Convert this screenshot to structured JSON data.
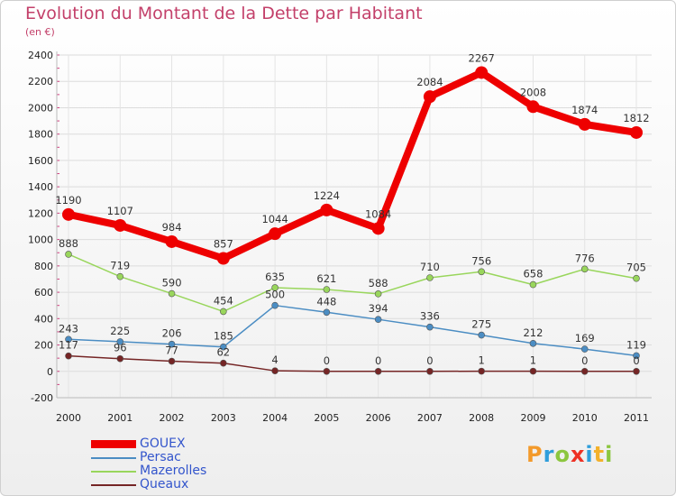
{
  "chart_data": {
    "type": "line",
    "title": "Evolution du Montant de la Dette par Habitant",
    "subtitle": "(en €)",
    "categories": [
      "2000",
      "2001",
      "2002",
      "2003",
      "2004",
      "2005",
      "2006",
      "2007",
      "2008",
      "2009",
      "2010",
      "2011"
    ],
    "ylim": [
      -200,
      2400
    ],
    "yticks": [
      -200,
      0,
      200,
      400,
      600,
      800,
      1000,
      1200,
      1400,
      1600,
      1800,
      2000,
      2200,
      2400
    ],
    "grid": true,
    "legend_position": "bottom-left",
    "series": [
      {
        "name": "GOUEX",
        "color": "#ee0000",
        "values": [
          1190,
          1107,
          984,
          857,
          1044,
          1224,
          1084,
          2084,
          2267,
          2008,
          1874,
          1812
        ]
      },
      {
        "name": "Persac",
        "color": "#4b8dc3",
        "values": [
          243,
          225,
          206,
          185,
          500,
          448,
          394,
          336,
          275,
          212,
          169,
          119
        ]
      },
      {
        "name": "Mazerolles",
        "color": "#99d65c",
        "values": [
          888,
          719,
          590,
          454,
          635,
          621,
          588,
          710,
          756,
          658,
          776,
          705
        ]
      },
      {
        "name": "Queaux",
        "color": "#752525",
        "values": [
          117,
          96,
          77,
          62,
          4,
          0,
          0,
          0,
          1,
          1,
          0,
          0
        ]
      }
    ]
  },
  "logo": {
    "letters": [
      {
        "ch": "P",
        "color": "#f39a2b"
      },
      {
        "ch": "r",
        "color": "#2f9edb"
      },
      {
        "ch": "o",
        "color": "#8cc63f"
      },
      {
        "ch": "x",
        "color": "#ee3124"
      },
      {
        "ch": "i",
        "color": "#2f9edb"
      },
      {
        "ch": "t",
        "color": "#f3b12b"
      },
      {
        "ch": "i",
        "color": "#8cc63f"
      }
    ]
  }
}
